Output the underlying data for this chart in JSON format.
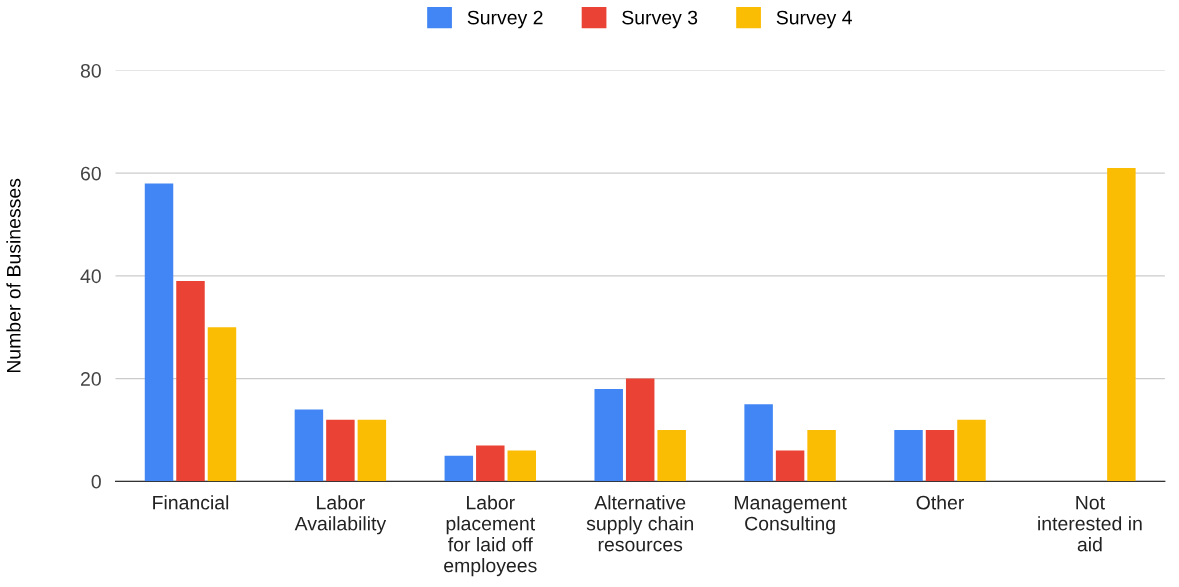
{
  "chart_data": {
    "type": "bar",
    "ylabel": "Number of Businesses",
    "categories": [
      "Financial",
      "Labor\nAvailability",
      "Labor\nplacement\nfor laid off\nemployees",
      "Alternative\nsupply chain\nresources",
      "Management\nConsulting",
      "Other",
      "Not\ninterested in\naid"
    ],
    "series": [
      {
        "name": "Survey 2",
        "color": "#4285f4",
        "values": [
          58,
          14,
          5,
          18,
          15,
          10,
          0
        ]
      },
      {
        "name": "Survey 3",
        "color": "#ea4335",
        "values": [
          39,
          12,
          7,
          20,
          6,
          10,
          0
        ]
      },
      {
        "name": "Survey 4",
        "color": "#fbbc04",
        "values": [
          30,
          12,
          6,
          10,
          10,
          12,
          61
        ]
      }
    ],
    "ylim": [
      0,
      80
    ],
    "yticks": [
      0,
      20,
      40,
      60,
      80
    ],
    "grid": "y",
    "legend": "top"
  }
}
